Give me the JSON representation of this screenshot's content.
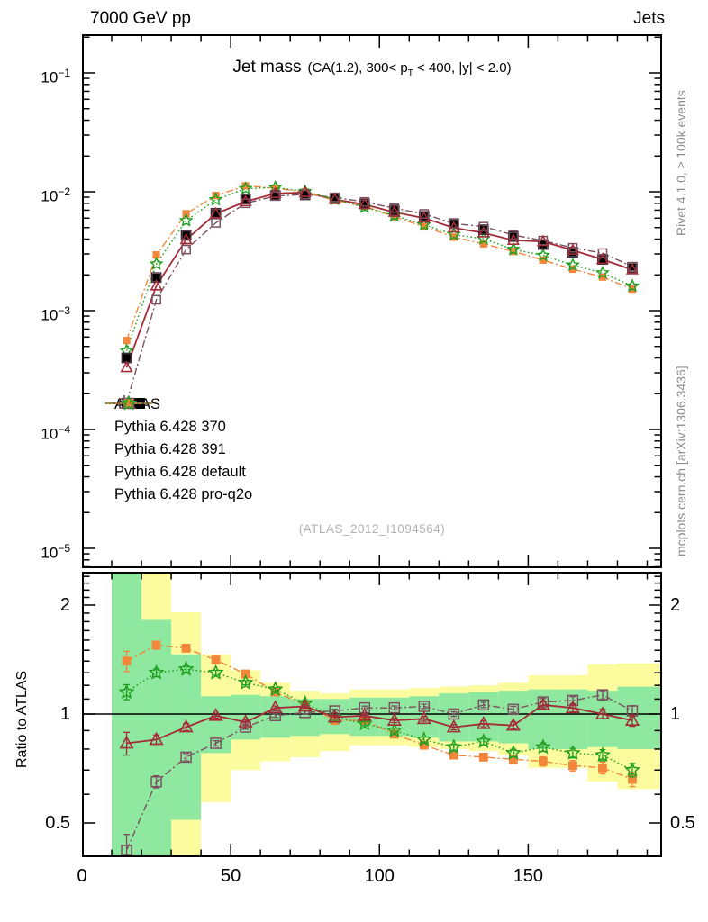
{
  "header": {
    "left": "7000 GeV pp",
    "right": "Jets"
  },
  "title": {
    "main": "Jet mass",
    "detail_pre": "(CA(1.2), 300< p",
    "detail_sub": "T",
    "detail_post": " < 400, |y| < 2.0)"
  },
  "watermark": "(ATLAS_2012_I1094564)",
  "captions": {
    "right_top": "Rivet 4.1.0, ≥ 100k events",
    "right_bottom": "mcplots.cern.ch [arXiv:1306.3436]"
  },
  "ratio_panel": {
    "ylabel": "Ratio to ATLAS"
  },
  "legend": {
    "items": [
      {
        "label": "ATLAS",
        "marker": "data-square",
        "color": "#000000",
        "outline_color": "#43283a",
        "line": "none"
      },
      {
        "label": "Pythia 6.428 370",
        "marker": "triangle-open",
        "color": "#a32c39",
        "line": "solid"
      },
      {
        "label": "Pythia 6.428 391",
        "marker": "square-open",
        "color": "#7b5060",
        "line": "dashdot"
      },
      {
        "label": "Pythia 6.428 default",
        "marker": "square-filled",
        "color": "#f2873b",
        "line": "dashdot"
      },
      {
        "label": "Pythia 6.428 pro-q2o",
        "marker": "star-open",
        "color": "#22a022",
        "line": "dotted"
      }
    ]
  },
  "chart_data": {
    "type": "line",
    "title": "Jet mass (CA(1.2), 300< p_T < 400, |y| < 2.0)",
    "x": [
      15,
      25,
      35,
      45,
      55,
      65,
      75,
      85,
      95,
      105,
      115,
      125,
      135,
      145,
      155,
      165,
      175,
      185
    ],
    "bin_edges": [
      10,
      20,
      30,
      40,
      50,
      60,
      70,
      80,
      90,
      100,
      110,
      120,
      130,
      140,
      150,
      160,
      170,
      180,
      195
    ],
    "xlim": [
      0,
      195
    ],
    "xticks": [
      0,
      50,
      100,
      150
    ],
    "main_axis": {
      "scale": "log",
      "ylim": [
        7e-06,
        0.21
      ],
      "decade_exponents": [
        -1,
        -2,
        -3,
        -4,
        -5
      ]
    },
    "ratio_axis": {
      "scale": "log",
      "ylim": [
        0.402,
        2.47
      ],
      "ticks": [
        2,
        1,
        0.5
      ],
      "tick_labels": [
        "2",
        "1",
        "0.5"
      ]
    },
    "series": [
      {
        "name": "ATLAS",
        "role": "data",
        "color": "#000000",
        "outline_color": "#43283a",
        "marker": "square-filled",
        "values": [
          0.0004,
          0.0019,
          0.0043,
          0.0066,
          0.0087,
          0.0093,
          0.0094,
          0.0088,
          0.0079,
          0.007,
          0.0062,
          0.0054,
          0.0048,
          0.0042,
          0.0036,
          0.0031,
          0.0027,
          0.0023
        ],
        "rel_err": 0.05
      },
      {
        "name": "Pythia 6.428 370",
        "color": "#a32c39",
        "line": "solid",
        "marker": "triangle-open",
        "ratio": [
          0.83,
          0.85,
          0.92,
          0.99,
          0.95,
          1.04,
          1.05,
          0.98,
          0.99,
          0.96,
          0.97,
          0.92,
          0.94,
          0.93,
          1.06,
          1.04,
          1.0,
          0.96
        ],
        "ratio_err": [
          0.06,
          0.025,
          0.02,
          0.015,
          0.012,
          0.012,
          0.012,
          0.012,
          0.012,
          0.013,
          0.015,
          0.015,
          0.018,
          0.02,
          0.024,
          0.026,
          0.03,
          0.035
        ]
      },
      {
        "name": "Pythia 6.428 391",
        "color": "#7b5060",
        "line": "dashdot",
        "marker": "square-open",
        "ratio": [
          0.42,
          0.65,
          0.76,
          0.83,
          0.92,
          0.99,
          1.01,
          1.02,
          1.04,
          1.04,
          1.05,
          1.0,
          1.06,
          1.03,
          1.08,
          1.09,
          1.13,
          1.02
        ],
        "ratio_err": [
          0.045,
          0.025,
          0.018,
          0.014,
          0.012,
          0.011,
          0.011,
          0.011,
          0.012,
          0.013,
          0.015,
          0.015,
          0.018,
          0.02,
          0.024,
          0.026,
          0.03,
          0.035
        ]
      },
      {
        "name": "Pythia 6.428 default",
        "color": "#f2873b",
        "line": "dashdot",
        "marker": "square-filled",
        "ratio": [
          1.4,
          1.55,
          1.52,
          1.41,
          1.29,
          1.15,
          1.06,
          0.96,
          0.96,
          0.88,
          0.82,
          0.77,
          0.76,
          0.75,
          0.74,
          0.72,
          0.71,
          0.66
        ],
        "ratio_err": [
          0.09,
          0.04,
          0.028,
          0.022,
          0.018,
          0.015,
          0.013,
          0.012,
          0.012,
          0.013,
          0.014,
          0.015,
          0.017,
          0.019,
          0.022,
          0.024,
          0.027,
          0.03
        ]
      },
      {
        "name": "Pythia 6.428 pro-q2o",
        "color": "#22a022",
        "line": "dotted",
        "marker": "star-open",
        "ratio": [
          1.15,
          1.3,
          1.33,
          1.3,
          1.22,
          1.17,
          1.07,
          0.98,
          0.94,
          0.9,
          0.85,
          0.81,
          0.84,
          0.78,
          0.81,
          0.78,
          0.77,
          0.7
        ],
        "ratio_err": [
          0.055,
          0.032,
          0.025,
          0.02,
          0.016,
          0.014,
          0.012,
          0.012,
          0.012,
          0.013,
          0.014,
          0.015,
          0.017,
          0.019,
          0.022,
          0.024,
          0.027,
          0.03
        ]
      }
    ],
    "uncertainty_bands": {
      "yellow": {
        "color": "#fcfc9e",
        "lo": [
          0.402,
          0.402,
          0.402,
          0.57,
          0.7,
          0.74,
          0.76,
          0.79,
          0.82,
          0.82,
          0.81,
          0.8,
          0.79,
          0.77,
          0.71,
          0.71,
          0.65,
          0.62
        ],
        "hi": [
          2.47,
          2.47,
          1.91,
          1.46,
          1.32,
          1.22,
          1.16,
          1.14,
          1.17,
          1.17,
          1.18,
          1.19,
          1.2,
          1.22,
          1.28,
          1.28,
          1.37,
          1.38
        ]
      },
      "green": {
        "color": "#8fe89f",
        "lo": [
          0.402,
          0.402,
          0.51,
          0.78,
          0.85,
          0.86,
          0.87,
          0.88,
          0.87,
          0.87,
          0.86,
          0.84,
          0.84,
          0.83,
          0.8,
          0.8,
          0.81,
          0.8
        ],
        "hi": [
          2.47,
          1.82,
          1.46,
          1.12,
          1.13,
          1.12,
          1.1,
          1.1,
          1.11,
          1.11,
          1.12,
          1.14,
          1.15,
          1.16,
          1.17,
          1.17,
          1.16,
          1.19
        ]
      }
    },
    "legend_position": "left-middle",
    "grid": false
  }
}
